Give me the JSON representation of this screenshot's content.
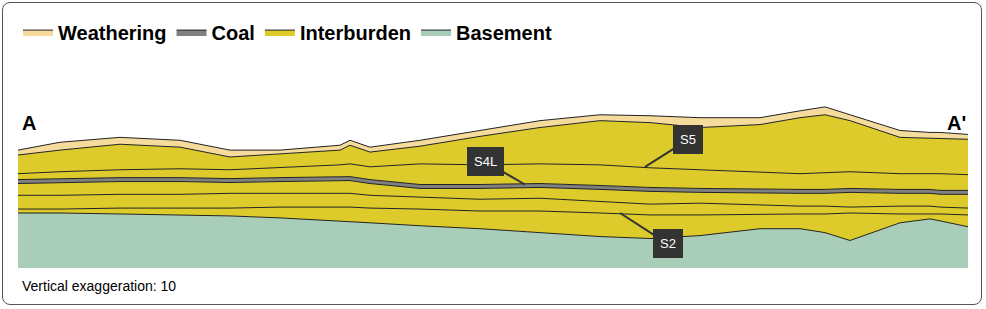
{
  "chart_data": {
    "type": "area",
    "section_start": "A",
    "section_end": "A'",
    "caption": "Vertical exaggeration: 10",
    "legend": "top left",
    "tick_labels": false,
    "grid": false,
    "xlim": [
      0,
      950
    ],
    "ylim": [
      0,
      170
    ],
    "x": [
      0,
      42,
      102,
      162,
      212,
      262,
      322,
      332,
      352,
      402,
      462,
      522,
      582,
      632,
      682,
      742,
      782,
      807,
      832,
      882,
      912,
      922,
      950
    ],
    "layers": [
      {
        "name": "Basement",
        "color": "#a8cdb8",
        "top": [
          56,
          56,
          55,
          54,
          53,
          51,
          48,
          47,
          46,
          43,
          40,
          36,
          32,
          30,
          33,
          40,
          40,
          36,
          28,
          46,
          50,
          48,
          42
        ]
      },
      {
        "name": "Interburden",
        "color": "#dccb2a",
        "top": [
          60,
          60,
          61,
          61,
          61,
          62,
          62,
          62,
          61,
          60,
          58,
          58,
          56,
          54,
          54,
          55,
          55,
          55,
          56,
          55,
          55,
          55,
          54
        ]
      },
      {
        "name": "Interburden",
        "color": "#dccb2a",
        "top": [
          74,
          74,
          75,
          75,
          76,
          76,
          76,
          76,
          74,
          72,
          70,
          71,
          68,
          65,
          66,
          64,
          63,
          63,
          62,
          63,
          63,
          62,
          61
        ]
      },
      {
        "name": "Interburden",
        "color": "#dccb2a",
        "top": [
          86,
          87,
          88,
          88,
          87,
          88,
          89,
          89,
          86,
          81,
          81,
          82,
          80,
          78,
          77,
          76,
          76,
          76,
          77,
          76,
          76,
          75,
          75
        ]
      },
      {
        "name": "Coal",
        "color": "#808080",
        "top": [
          90,
          91,
          92,
          92,
          91,
          92,
          93,
          93,
          90,
          85,
          85,
          86,
          84,
          82,
          81,
          80,
          80,
          80,
          81,
          80,
          80,
          79,
          79
        ]
      },
      {
        "name": "Interburden",
        "color": "#dccb2a",
        "top": [
          96,
          98,
          100,
          101,
          100,
          102,
          105,
          106,
          103,
          106,
          105,
          106,
          105,
          102,
          100,
          98,
          96,
          97,
          98,
          96,
          96,
          96,
          95
        ]
      },
      {
        "name": "Interburden",
        "color": "#dccb2a",
        "top": [
          115,
          120,
          126,
          123,
          113,
          116,
          120,
          125,
          118,
          124,
          134,
          143,
          150,
          148,
          143,
          146,
          153,
          156,
          150,
          133,
          132,
          132,
          131
        ]
      },
      {
        "name": "Weathering",
        "color": "#f5dc9c",
        "top": [
          120,
          128,
          133,
          130,
          120,
          120,
          125,
          130,
          123,
          130,
          140,
          150,
          156,
          155,
          153,
          153,
          160,
          164,
          156,
          140,
          138,
          138,
          136
        ]
      }
    ],
    "annotations": [
      {
        "text": "S4L",
        "x": 507,
        "y": 85
      },
      {
        "text": "S5",
        "x": 627,
        "y": 103
      },
      {
        "text": "S2",
        "x": 602,
        "y": 56
      }
    ]
  }
}
